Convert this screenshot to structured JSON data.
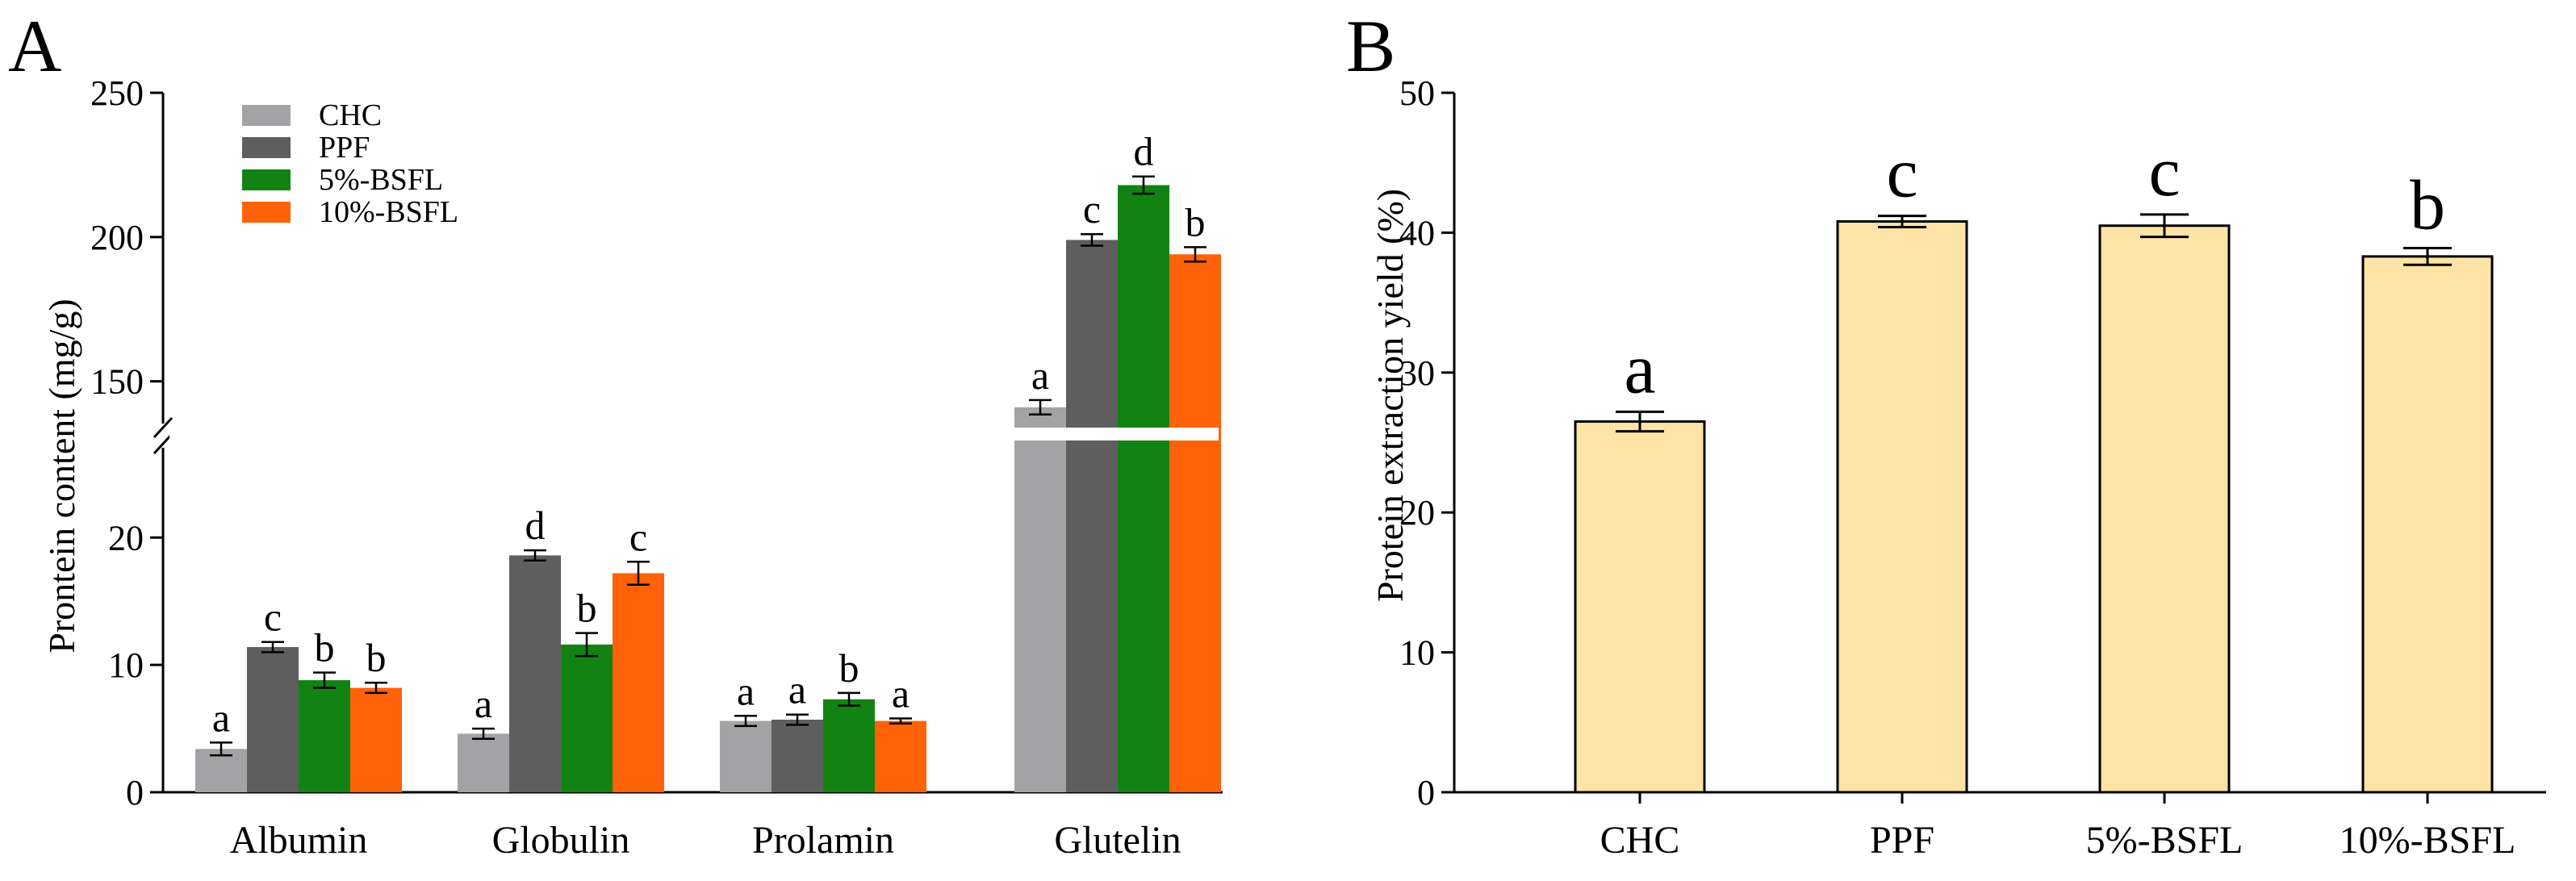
{
  "figure": {
    "panel_a_letter": "A",
    "panel_b_letter": "B"
  },
  "chart_data": [
    {
      "id": "panel-a",
      "type": "bar",
      "title": "",
      "xlabel": "",
      "ylabel": "Prontein content (mg/g)",
      "axis_break": {
        "lower_range": [
          0,
          28
        ],
        "upper_range": [
          132,
          250
        ]
      },
      "lower_ticks": [
        0,
        10,
        20
      ],
      "upper_ticks": [
        150,
        200,
        250
      ],
      "legend_position": "top-left",
      "categories": [
        "Albumin",
        "Globulin",
        "Prolamin",
        "Glutelin"
      ],
      "series": [
        {
          "name": "CHC",
          "color": "#a3a3a6",
          "values": [
            3.4,
            4.6,
            5.6,
            141
          ],
          "errors": [
            0.5,
            0.4,
            0.4,
            2.5
          ],
          "letters": [
            "a",
            "a",
            "a",
            "a"
          ]
        },
        {
          "name": "PPF",
          "color": "#5e5e5e",
          "values": [
            11.4,
            18.6,
            5.7,
            199
          ],
          "errors": [
            0.4,
            0.4,
            0.4,
            2.0
          ],
          "letters": [
            "c",
            "d",
            "a",
            "c"
          ]
        },
        {
          "name": "5%-BSFL",
          "color": "#128312",
          "values": [
            8.8,
            11.6,
            7.3,
            218
          ],
          "errors": [
            0.6,
            0.9,
            0.5,
            3.0
          ],
          "letters": [
            "b",
            "b",
            "b",
            "d"
          ]
        },
        {
          "name": "10%-BSFL",
          "color": "#ff6208",
          "values": [
            8.2,
            17.2,
            5.6,
            194
          ],
          "errors": [
            0.4,
            0.9,
            0.2,
            2.5
          ],
          "letters": [
            "b",
            "c",
            "a",
            "b"
          ]
        }
      ]
    },
    {
      "id": "panel-b",
      "type": "bar",
      "title": "",
      "xlabel": "",
      "ylabel": "Protein extraction yield (%)",
      "ylim": [
        0,
        50
      ],
      "yticks": [
        0,
        10,
        20,
        30,
        40,
        50
      ],
      "bar_color": "#fde3a6",
      "categories": [
        "CHC",
        "PPF",
        "5%-BSFL",
        "10%-BSFL"
      ],
      "values": [
        26.5,
        40.8,
        40.5,
        38.3
      ],
      "errors": [
        0.7,
        0.4,
        0.8,
        0.6
      ],
      "letters": [
        "a",
        "c",
        "c",
        "b"
      ]
    }
  ]
}
